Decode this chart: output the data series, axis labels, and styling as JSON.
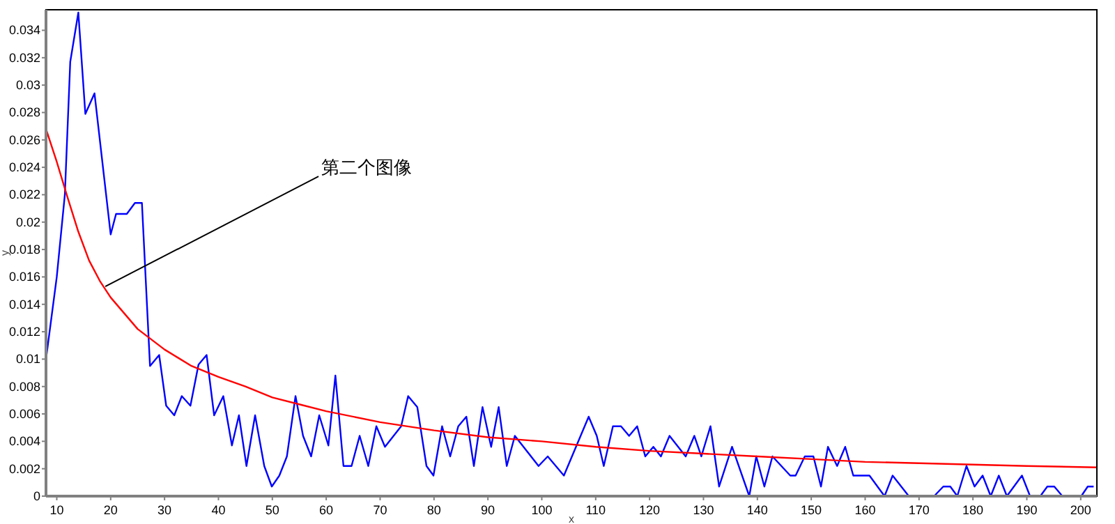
{
  "chart_data": {
    "type": "line",
    "xlabel": "x",
    "ylabel": "y",
    "xlim": [
      8,
      203
    ],
    "ylim": [
      0,
      0.0355
    ],
    "xticks": [
      10,
      20,
      30,
      40,
      50,
      60,
      70,
      80,
      90,
      100,
      110,
      120,
      130,
      140,
      150,
      160,
      170,
      180,
      190,
      200
    ],
    "yticks": [
      0,
      0.002,
      0.004,
      0.006,
      0.008,
      0.01,
      0.012,
      0.014,
      0.016,
      0.018,
      0.02,
      0.022,
      0.024,
      0.026,
      0.028,
      0.03,
      0.032,
      0.034
    ],
    "series": [
      {
        "type": "line",
        "color": "#0000ff",
        "x": [
          8,
          10,
          11.5,
          12.5,
          14,
          15.3,
          17,
          20,
          21,
          23,
          24.5,
          25.8,
          27.3,
          29,
          30.3,
          31.8,
          33.2,
          34.8,
          36.3,
          37.8,
          39.2,
          40.9,
          42.5,
          43.8,
          45.2,
          46.8,
          48.5,
          49.9,
          51.3,
          52.7,
          54.3,
          55.7,
          57.2,
          58.7,
          60.4,
          61.7,
          63.2,
          64.7,
          66.2,
          67.8,
          69.3,
          70.9,
          73.9,
          75.2,
          76.9,
          78.6,
          79.9,
          81.5,
          83,
          84.5,
          86,
          87.4,
          89,
          90.6,
          92,
          93.5,
          95,
          99.4,
          101.1,
          104.1,
          108.7,
          110.2,
          111.5,
          113.2,
          114.7,
          116.2,
          117.7,
          119.2,
          120.7,
          122.1,
          123.7,
          126.7,
          128.3,
          129.6,
          131.3,
          132.9,
          135.3,
          138.5,
          139.8,
          141.3,
          142.8,
          146.1,
          147.1,
          148.8,
          150.4,
          151.8,
          153.1,
          154.8,
          156.3,
          157.8,
          160.8,
          163.6,
          165.1,
          168.1,
          172.8,
          174.5,
          175.8,
          177.1,
          178.8,
          180.3,
          181.8,
          183.3,
          184.8,
          186.3,
          189.1,
          190.6,
          192.5,
          193.8,
          195.1,
          196.6,
          200.1,
          201.3,
          202.4
        ],
        "values": [
          0.01,
          0.016,
          0.022,
          0.0317,
          0.0353,
          0.0279,
          0.0294,
          0.0191,
          0.0206,
          0.0206,
          0.0214,
          0.0214,
          0.0095,
          0.0103,
          0.0066,
          0.0059,
          0.0073,
          0.0066,
          0.0096,
          0.0103,
          0.0059,
          0.0073,
          0.0037,
          0.0059,
          0.0022,
          0.0059,
          0.0022,
          0.0007,
          0.0015,
          0.0029,
          0.0073,
          0.0044,
          0.0029,
          0.0059,
          0.0037,
          0.0088,
          0.0022,
          0.0022,
          0.0044,
          0.0022,
          0.0051,
          0.0036,
          0.0051,
          0.0073,
          0.0065,
          0.0022,
          0.0015,
          0.0051,
          0.0029,
          0.0051,
          0.0058,
          0.0022,
          0.0065,
          0.0036,
          0.0065,
          0.0022,
          0.0044,
          0.0022,
          0.0029,
          0.0015,
          0.0058,
          0.0044,
          0.0022,
          0.0051,
          0.0051,
          0.0044,
          0.0051,
          0.0029,
          0.0036,
          0.0029,
          0.0044,
          0.0029,
          0.0044,
          0.0029,
          0.0051,
          0.0007,
          0.0036,
          0,
          0.0029,
          0.0007,
          0.0029,
          0.0015,
          0.0015,
          0.0029,
          0.0029,
          0.0007,
          0.0036,
          0.0022,
          0.0036,
          0.0015,
          0.0015,
          0,
          0.0015,
          0,
          0,
          0.0007,
          0.0007,
          0,
          0.0022,
          0.0007,
          0.0015,
          0,
          0.0015,
          0,
          0.0015,
          0,
          0,
          0.0007,
          0.0007,
          0,
          0,
          0.0007,
          0.0007
        ]
      },
      {
        "type": "line",
        "color": "#ff0000",
        "x": [
          8,
          10,
          12,
          14,
          16,
          18,
          20,
          25,
          30,
          35,
          40,
          45,
          50,
          55,
          60,
          70,
          80,
          90,
          100,
          110,
          120,
          130,
          140,
          150,
          160,
          170,
          180,
          190,
          203
        ],
        "values": [
          0.0268,
          0.0244,
          0.0218,
          0.0193,
          0.0172,
          0.0157,
          0.0145,
          0.0122,
          0.0107,
          0.0095,
          0.0087,
          0.008,
          0.0072,
          0.0067,
          0.0062,
          0.0054,
          0.0048,
          0.0043,
          0.004,
          0.0036,
          0.0033,
          0.0031,
          0.0029,
          0.0027,
          0.0025,
          0.0024,
          0.0023,
          0.0022,
          0.0021
        ]
      }
    ],
    "annotations": [
      {
        "text": "第二个图像",
        "x": 19,
        "y": 0.0153
      }
    ]
  }
}
